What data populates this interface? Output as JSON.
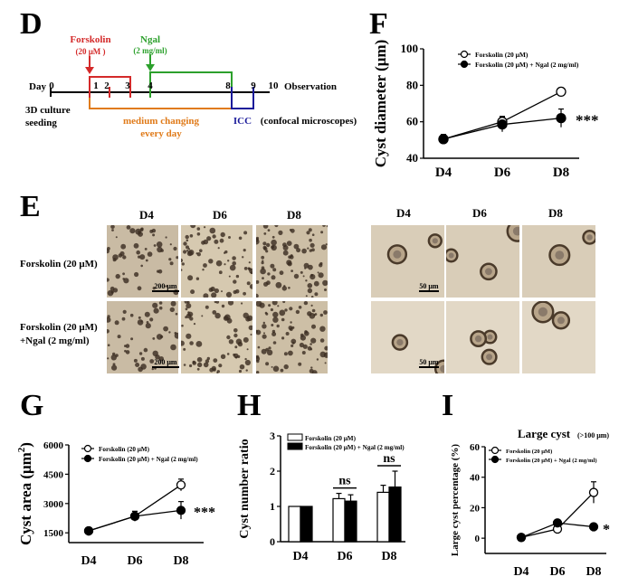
{
  "panels": {
    "D": "D",
    "E": "E",
    "F": "F",
    "G": "G",
    "H": "H",
    "I": "I"
  },
  "timeline": {
    "forskolin_label": "Forskolin",
    "forskolin_conc": "(20 μM )",
    "ngal_label": "Ngal",
    "ngal_conc": "(2 mg/ml)",
    "day_label": "Day",
    "days": [
      "0",
      "1",
      "2",
      "3",
      "4",
      "8",
      "9",
      "10"
    ],
    "seeding_line1": "3D culture",
    "seeding_line2": "seeding",
    "medium_line1": "medium changing",
    "medium_line2": "every day",
    "icc": "ICC",
    "observation_line1": "Observation",
    "observation_line2": "(confocal microscopes)",
    "colors": {
      "forskolin": "#d42a2a",
      "ngal": "#2ca02c",
      "medium": "#e07b1a",
      "icc": "#1a1a9a"
    }
  },
  "panel_e": {
    "left_columns": [
      "D4",
      "D6",
      "D8"
    ],
    "right_columns": [
      "D4",
      "D6",
      "D8"
    ],
    "row1_label": "Forskolin (20 μM)",
    "row2_line1": "Forskolin (20 μM)",
    "row2_line2": "+Ngal (2 mg/ml)",
    "scale_left": "200 μm",
    "scale_right": "50 μm"
  },
  "chart_data": [
    {
      "panel": "F",
      "type": "line",
      "categories": [
        "D4",
        "D6",
        "D8"
      ],
      "ylabel": "Cyst diameter (μm)",
      "ylim": [
        40,
        100
      ],
      "yticks": [
        40,
        60,
        80,
        100
      ],
      "legend_position": "top-right",
      "series": [
        {
          "name": "Forskolin (20 μM)",
          "marker": "open",
          "values": [
            50.5,
            60,
            76.5
          ],
          "errors": [
            2.5,
            3,
            2
          ]
        },
        {
          "name": "Forskolin (20 μM) + Ngal (2 mg/ml)",
          "marker": "filled",
          "values": [
            50.5,
            58.5,
            62
          ],
          "errors": [
            2.5,
            4,
            5
          ]
        }
      ],
      "annotation": "***"
    },
    {
      "panel": "G",
      "type": "line",
      "categories": [
        "D4",
        "D6",
        "D8"
      ],
      "ylabel": "Cyst area (μm",
      "ylabel_sup": "2",
      "ylabel_close": ")",
      "ylim": [
        1000,
        6000
      ],
      "yticks": [
        1500,
        3000,
        4500,
        6000
      ],
      "legend_position": "top-right",
      "series": [
        {
          "name": "Forskolin (20 μM)",
          "marker": "open",
          "values": [
            1600,
            2350,
            3950
          ],
          "errors": [
            60,
            250,
            300
          ]
        },
        {
          "name": "Forskolin (20 μM) + Ngal (2 mg/ml)",
          "marker": "filled",
          "values": [
            1600,
            2350,
            2650
          ],
          "errors": [
            60,
            250,
            450
          ]
        }
      ],
      "annotation": "***"
    },
    {
      "panel": "H",
      "type": "bar",
      "categories": [
        "D4",
        "D6",
        "D8"
      ],
      "ylabel": "Cyst number ratio",
      "ylim": [
        0,
        3
      ],
      "yticks": [
        0,
        1,
        2,
        3
      ],
      "legend_position": "top",
      "series": [
        {
          "name": "Forskolin (20 μM)",
          "fill": "white",
          "values": [
            1.0,
            1.22,
            1.4
          ],
          "errors": [
            0,
            0.15,
            0.2
          ]
        },
        {
          "name": "Forskolin (20 μM) + Ngal (2 mg/ml)",
          "fill": "black",
          "values": [
            1.0,
            1.15,
            1.55
          ],
          "errors": [
            0,
            0.18,
            0.45
          ]
        }
      ],
      "annotations": [
        "ns",
        "ns"
      ]
    },
    {
      "panel": "I",
      "type": "line",
      "title": "Large cyst",
      "subtitle": "(>100 μm)",
      "categories": [
        "D4",
        "D6",
        "D8"
      ],
      "ylabel": "Large cyst percentage (%)",
      "ylim": [
        -10,
        60
      ],
      "yticks": [
        0,
        20,
        40,
        60
      ],
      "legend_position": "top-left",
      "series": [
        {
          "name": "Forskolin (20 μM)",
          "marker": "open",
          "values": [
            0.5,
            6,
            30
          ],
          "errors": [
            0.5,
            1,
            7
          ]
        },
        {
          "name": "Forskolin (20 μM) + Ngal (2 mg/ml)",
          "marker": "filled",
          "values": [
            0.5,
            10,
            7.5
          ],
          "errors": [
            0.5,
            1.5,
            1.5
          ]
        }
      ],
      "annotation": "*"
    }
  ]
}
